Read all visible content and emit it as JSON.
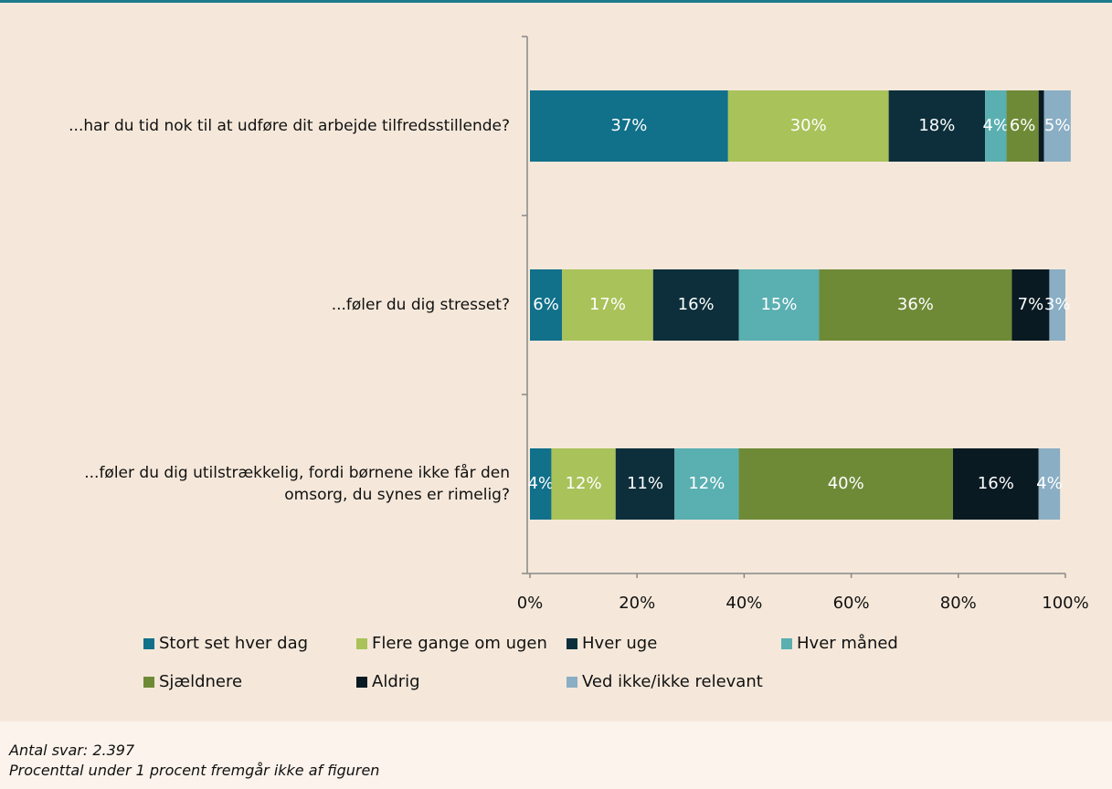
{
  "chart_data": {
    "type": "stacked_barh",
    "categories": [
      "...har du tid nok til at udføre dit arbejde tilfredsstillende?",
      "...føler du dig stresset?",
      "...føler du dig utilstrækkelig, fordi børnene ikke får den omsorg, du synes er rimelig?"
    ],
    "series": [
      {
        "name": "Stort set hver dag",
        "color": "#11708a",
        "values": [
          37,
          6,
          4
        ],
        "value_labels": [
          "37%",
          "6%",
          "4%"
        ]
      },
      {
        "name": "Flere gange om ugen",
        "color": "#a9c25a",
        "values": [
          30,
          17,
          12
        ],
        "value_labels": [
          "30%",
          "17%",
          "12%"
        ]
      },
      {
        "name": "Hver uge",
        "color": "#0d2f3b",
        "values": [
          18,
          16,
          11
        ],
        "value_labels": [
          "18%",
          "16%",
          "11%"
        ]
      },
      {
        "name": "Hver måned",
        "color": "#5aafb1",
        "values": [
          4,
          15,
          12
        ],
        "value_labels": [
          "4%",
          "15%",
          "12%"
        ]
      },
      {
        "name": "Sjældnere",
        "color": "#6e8a37",
        "values": [
          6,
          36,
          40
        ],
        "value_labels": [
          "6%",
          "36%",
          "40%"
        ]
      },
      {
        "name": "Aldrig",
        "color": "#0a1a22",
        "values": [
          1,
          7,
          16
        ],
        "value_labels": [
          null,
          "7%",
          "16%"
        ]
      },
      {
        "name": "Ved ikke/ikke relevant",
        "color": "#8aaec4",
        "values": [
          5,
          3,
          4
        ],
        "value_labels": [
          "5%",
          "3%",
          "4%"
        ]
      }
    ],
    "xlim": [
      0,
      100
    ],
    "xticks": [
      {
        "value": 0,
        "label": "0%"
      },
      {
        "value": 20,
        "label": "20%"
      },
      {
        "value": 40,
        "label": "40%"
      },
      {
        "value": 60,
        "label": "60%"
      },
      {
        "value": 80,
        "label": "80%"
      },
      {
        "value": 100,
        "label": "100%"
      }
    ],
    "notes": [
      "Antal svar: 2.397",
      "Procenttal under 1 procent fremgår ikke af figuren"
    ]
  }
}
